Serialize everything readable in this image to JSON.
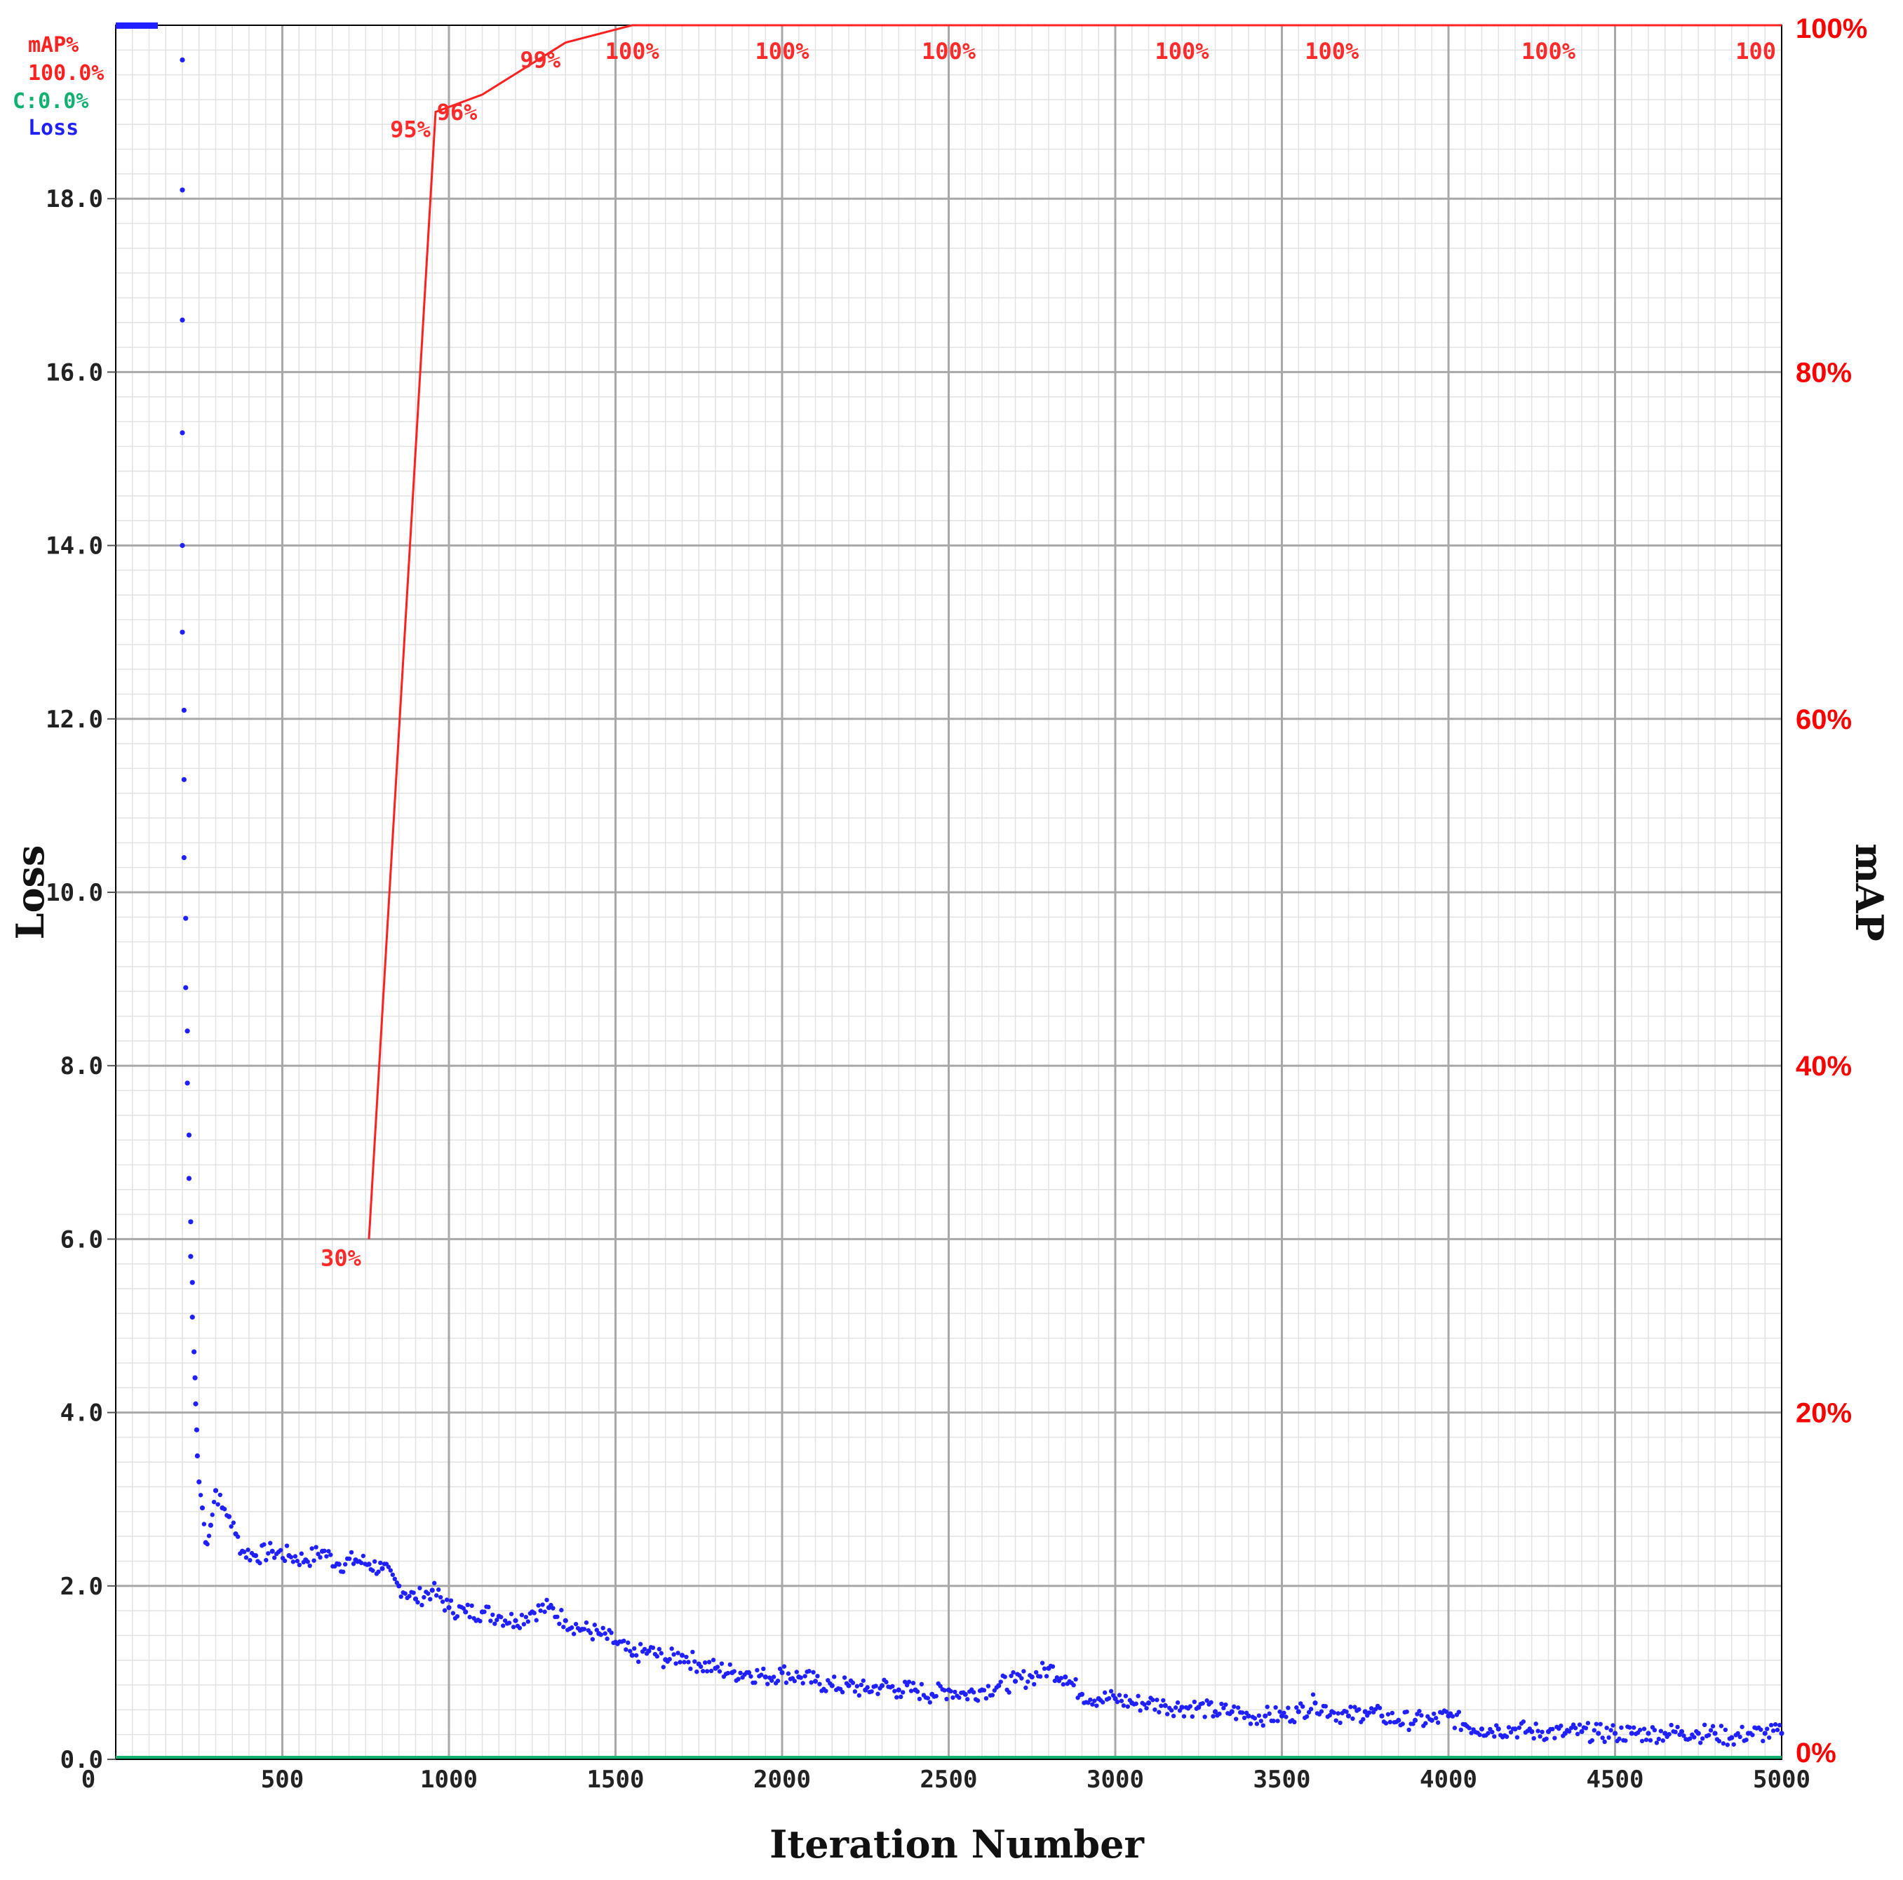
{
  "chart_data": {
    "type": "line",
    "xlabel": "Iteration Number",
    "ylabel_left": "Loss",
    "ylabel_right": "mAP",
    "x_ticks": [
      "0",
      "500",
      "1000",
      "1500",
      "2000",
      "2500",
      "3000",
      "3500",
      "4000",
      "4500",
      "5000"
    ],
    "y_left_ticks": [
      "0.0",
      "2.0",
      "4.0",
      "6.0",
      "8.0",
      "10.0",
      "12.0",
      "14.0",
      "16.0",
      "18.0"
    ],
    "y_right_ticks": [
      "0%",
      "20%",
      "40%",
      "60%",
      "80%",
      "100%"
    ],
    "xlim": [
      0,
      5000
    ],
    "ylim_left": [
      0,
      20
    ],
    "ylim_right": [
      0,
      100
    ],
    "grid": true,
    "legend": {
      "position": "top-left",
      "entries": [
        {
          "text": "mAP%",
          "color": "#ff2020"
        },
        {
          "text": "100.0%",
          "color": "#ff2020"
        },
        {
          "text": "C:0.0%",
          "color": "#10b070"
        },
        {
          "text": "Loss",
          "color": "#2020ff"
        }
      ]
    },
    "map_series": {
      "name": "mAP%",
      "color": "#ff2020",
      "points": [
        [
          760,
          30
        ],
        [
          960,
          95
        ],
        [
          1100,
          96
        ],
        [
          1350,
          99
        ],
        [
          1550,
          100
        ],
        [
          2000,
          100
        ],
        [
          2500,
          100
        ],
        [
          3000,
          100
        ],
        [
          3500,
          100
        ],
        [
          4000,
          100
        ],
        [
          4500,
          100
        ],
        [
          5000,
          100
        ]
      ],
      "labels": [
        {
          "x": 760,
          "y": 30,
          "text": "30%"
        },
        {
          "x": 960,
          "y": 95,
          "text": "95%"
        },
        {
          "x": 1100,
          "y": 96,
          "text": "96%"
        },
        {
          "x": 1350,
          "y": 99,
          "text": "99%"
        },
        {
          "x": 1550,
          "y": 100,
          "text": "100%"
        },
        {
          "x": 2000,
          "y": 100,
          "text": "100%"
        },
        {
          "x": 2500,
          "y": 100,
          "text": "100%"
        },
        {
          "x": 3200,
          "y": 100,
          "text": "100%"
        },
        {
          "x": 3650,
          "y": 100,
          "text": "100%"
        },
        {
          "x": 4300,
          "y": 100,
          "text": "100%"
        },
        {
          "x": 5000,
          "y": 100,
          "text": "100"
        }
      ]
    },
    "loss_series": {
      "name": "Loss",
      "color": "#2020ff",
      "points": [
        [
          200,
          19.6
        ],
        [
          200,
          18.1
        ],
        [
          200,
          16.6
        ],
        [
          200,
          15.3
        ],
        [
          200,
          14.0
        ],
        [
          200,
          13.0
        ],
        [
          205,
          12.1
        ],
        [
          205,
          11.3
        ],
        [
          205,
          10.4
        ],
        [
          210,
          9.7
        ],
        [
          210,
          8.9
        ],
        [
          215,
          8.4
        ],
        [
          215,
          7.8
        ],
        [
          220,
          7.2
        ],
        [
          220,
          6.7
        ],
        [
          225,
          6.2
        ],
        [
          225,
          5.8
        ],
        [
          230,
          5.5
        ],
        [
          230,
          5.1
        ],
        [
          235,
          4.7
        ],
        [
          238,
          4.4
        ],
        [
          240,
          4.1
        ],
        [
          243,
          3.8
        ],
        [
          245,
          3.5
        ],
        [
          250,
          3.2
        ],
        [
          260,
          2.9
        ],
        [
          270,
          2.5
        ],
        [
          285,
          2.7
        ],
        [
          300,
          3.1
        ],
        [
          320,
          2.9
        ],
        [
          340,
          2.8
        ],
        [
          360,
          2.6
        ],
        [
          380,
          2.4
        ],
        [
          420,
          2.35
        ],
        [
          470,
          2.4
        ],
        [
          520,
          2.35
        ],
        [
          570,
          2.3
        ],
        [
          620,
          2.4
        ],
        [
          670,
          2.25
        ],
        [
          720,
          2.3
        ],
        [
          760,
          2.25
        ],
        [
          800,
          2.2
        ],
        [
          850,
          2.0
        ],
        [
          900,
          1.85
        ],
        [
          950,
          1.95
        ],
        [
          1000,
          1.75
        ],
        [
          1050,
          1.7
        ],
        [
          1100,
          1.7
        ],
        [
          1150,
          1.65
        ],
        [
          1200,
          1.6
        ],
        [
          1250,
          1.7
        ],
        [
          1300,
          1.75
        ],
        [
          1350,
          1.6
        ],
        [
          1400,
          1.5
        ],
        [
          1450,
          1.45
        ],
        [
          1500,
          1.35
        ],
        [
          1550,
          1.2
        ],
        [
          1600,
          1.25
        ],
        [
          1650,
          1.15
        ],
        [
          1700,
          1.2
        ],
        [
          1750,
          1.1
        ],
        [
          1800,
          1.05
        ],
        [
          1850,
          1.0
        ],
        [
          1900,
          1.0
        ],
        [
          1950,
          0.95
        ],
        [
          2000,
          1.0
        ],
        [
          2050,
          0.95
        ],
        [
          2100,
          0.9
        ],
        [
          2150,
          0.85
        ],
        [
          2200,
          0.85
        ],
        [
          2250,
          0.8
        ],
        [
          2300,
          0.85
        ],
        [
          2350,
          0.8
        ],
        [
          2400,
          0.8
        ],
        [
          2450,
          0.75
        ],
        [
          2500,
          0.8
        ],
        [
          2550,
          0.75
        ],
        [
          2600,
          0.8
        ],
        [
          2650,
          0.85
        ],
        [
          2700,
          0.9
        ],
        [
          2750,
          0.95
        ],
        [
          2800,
          1.05
        ],
        [
          2850,
          0.95
        ],
        [
          2900,
          0.75
        ],
        [
          2950,
          0.7
        ],
        [
          3000,
          0.7
        ],
        [
          3050,
          0.65
        ],
        [
          3100,
          0.65
        ],
        [
          3150,
          0.62
        ],
        [
          3200,
          0.6
        ],
        [
          3250,
          0.6
        ],
        [
          3300,
          0.55
        ],
        [
          3350,
          0.55
        ],
        [
          3400,
          0.5
        ],
        [
          3450,
          0.5
        ],
        [
          3500,
          0.5
        ],
        [
          3550,
          0.55
        ],
        [
          3600,
          0.65
        ],
        [
          3650,
          0.55
        ],
        [
          3700,
          0.5
        ],
        [
          3750,
          0.55
        ],
        [
          3800,
          0.5
        ],
        [
          3850,
          0.45
        ],
        [
          3900,
          0.45
        ],
        [
          3950,
          0.45
        ],
        [
          4000,
          0.5
        ],
        [
          4050,
          0.4
        ],
        [
          4100,
          0.35
        ],
        [
          4150,
          0.35
        ],
        [
          4200,
          0.35
        ],
        [
          4250,
          0.32
        ],
        [
          4300,
          0.32
        ],
        [
          4350,
          0.3
        ],
        [
          4400,
          0.32
        ],
        [
          4450,
          0.3
        ],
        [
          4500,
          0.3
        ],
        [
          4550,
          0.3
        ],
        [
          4600,
          0.3
        ],
        [
          4650,
          0.3
        ],
        [
          4700,
          0.32
        ],
        [
          4750,
          0.3
        ],
        [
          4800,
          0.3
        ],
        [
          4850,
          0.25
        ],
        [
          4900,
          0.3
        ],
        [
          4950,
          0.3
        ],
        [
          5000,
          0.3
        ]
      ]
    },
    "c_series": {
      "name": "C:0.0%",
      "color": "#10b070",
      "value": 0.0
    }
  }
}
